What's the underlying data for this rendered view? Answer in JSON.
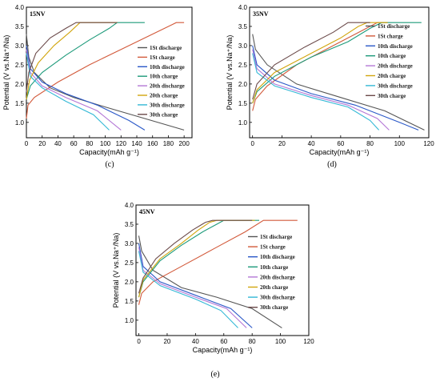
{
  "legend_labels": [
    "1St  discharge",
    "1St charge",
    "10th discharge",
    "10th charge",
    "20th  discharge",
    "20th charge",
    "30th  discharge",
    "30th charge"
  ],
  "colors": [
    "#555555",
    "#d2593a",
    "#2a58c8",
    "#1d9a7a",
    "#b477d6",
    "#d1a50d",
    "#33b8d6",
    "#6b4a4a"
  ],
  "chart_data": [
    {
      "type": "line",
      "panel": "15NV",
      "caption": "(c)",
      "xlabel": "Capacity(mAh g⁻¹)",
      "ylabel": "Potential (V vs.Na⁺/Na)",
      "xlim": [
        0,
        210
      ],
      "ylim": [
        0.6,
        4.0
      ],
      "xticks": [
        0,
        20,
        40,
        60,
        80,
        100,
        120,
        140,
        160,
        180,
        200
      ],
      "yticks": [
        1.0,
        1.5,
        2.0,
        2.5,
        3.0,
        3.5,
        4.0
      ],
      "series": [
        {
          "name": "1St  discharge",
          "x": [
            0,
            3,
            10,
            30,
            60,
            100,
            150,
            200
          ],
          "y": [
            3.3,
            2.7,
            2.3,
            1.9,
            1.65,
            1.4,
            1.1,
            0.8
          ]
        },
        {
          "name": "1St charge",
          "x": [
            0,
            2,
            10,
            40,
            80,
            120,
            160,
            185,
            190,
            200
          ],
          "y": [
            1.1,
            1.45,
            1.65,
            2.05,
            2.5,
            2.9,
            3.3,
            3.55,
            3.6,
            3.6
          ]
        },
        {
          "name": "10th discharge",
          "x": [
            0,
            5,
            20,
            50,
            90,
            130,
            150
          ],
          "y": [
            3.0,
            2.4,
            2.05,
            1.75,
            1.45,
            1.05,
            0.8
          ]
        },
        {
          "name": "10th charge",
          "x": [
            0,
            5,
            20,
            50,
            80,
            105,
            115,
            150
          ],
          "y": [
            1.6,
            1.95,
            2.3,
            2.75,
            3.15,
            3.45,
            3.6,
            3.6
          ]
        },
        {
          "name": "20th  discharge",
          "x": [
            0,
            5,
            20,
            50,
            90,
            120
          ],
          "y": [
            2.9,
            2.3,
            1.95,
            1.65,
            1.3,
            0.8
          ]
        },
        {
          "name": "20th charge",
          "x": [
            0,
            4,
            15,
            35,
            55,
            68,
            115
          ],
          "y": [
            1.6,
            2.1,
            2.55,
            3.0,
            3.35,
            3.6,
            3.6
          ]
        },
        {
          "name": "30th  discharge",
          "x": [
            0,
            5,
            20,
            50,
            85,
            105
          ],
          "y": [
            2.8,
            2.2,
            1.9,
            1.55,
            1.2,
            0.8
          ]
        },
        {
          "name": "30th charge",
          "x": [
            0,
            3,
            12,
            30,
            50,
            63,
            115
          ],
          "y": [
            1.8,
            2.3,
            2.8,
            3.2,
            3.45,
            3.6,
            3.6
          ]
        }
      ]
    },
    {
      "type": "line",
      "panel": "35NV",
      "caption": "(d)",
      "xlabel": "Capacity(mAh g⁻¹)",
      "ylabel": "Potential (V vs.Na⁺/Na)",
      "xlim": [
        -2,
        120
      ],
      "ylim": [
        0.6,
        4.0
      ],
      "xticks": [
        0,
        20,
        40,
        60,
        80,
        100,
        120
      ],
      "yticks": [
        1.0,
        1.5,
        2.0,
        2.5,
        3.0,
        3.5,
        4.0
      ],
      "series": [
        {
          "name": "1St  discharge",
          "x": [
            0,
            2,
            10,
            30,
            60,
            90,
            117
          ],
          "y": [
            3.3,
            2.9,
            2.5,
            2.0,
            1.65,
            1.3,
            0.8
          ]
        },
        {
          "name": "1St charge",
          "x": [
            0,
            2,
            10,
            30,
            55,
            75,
            85,
            92
          ],
          "y": [
            1.3,
            1.6,
            1.95,
            2.5,
            3.0,
            3.4,
            3.6,
            3.6
          ]
        },
        {
          "name": "10th discharge",
          "x": [
            0,
            3,
            15,
            40,
            70,
            100,
            113
          ],
          "y": [
            3.0,
            2.5,
            2.1,
            1.75,
            1.45,
            1.0,
            0.8
          ]
        },
        {
          "name": "10th charge",
          "x": [
            0,
            3,
            15,
            40,
            65,
            80,
            88,
            115
          ],
          "y": [
            1.5,
            1.8,
            2.2,
            2.7,
            3.1,
            3.45,
            3.6,
            3.6
          ]
        },
        {
          "name": "20th  discharge",
          "x": [
            0,
            3,
            15,
            40,
            65,
            85,
            93
          ],
          "y": [
            2.9,
            2.4,
            2.0,
            1.7,
            1.45,
            1.1,
            0.8
          ]
        },
        {
          "name": "20th charge",
          "x": [
            0,
            3,
            15,
            40,
            60,
            72,
            78,
            92
          ],
          "y": [
            1.5,
            1.85,
            2.3,
            2.8,
            3.2,
            3.5,
            3.6,
            3.6
          ]
        },
        {
          "name": "30th  discharge",
          "x": [
            0,
            3,
            15,
            40,
            65,
            80,
            86
          ],
          "y": [
            2.8,
            2.3,
            1.95,
            1.65,
            1.4,
            1.05,
            0.8
          ]
        },
        {
          "name": "30th charge",
          "x": [
            0,
            3,
            15,
            35,
            55,
            65,
            80
          ],
          "y": [
            1.6,
            2.0,
            2.5,
            2.95,
            3.35,
            3.6,
            3.6
          ]
        }
      ]
    },
    {
      "type": "line",
      "panel": "45NV",
      "caption": "(e)",
      "xlabel": "Capacity(mAh g⁻¹)",
      "ylabel": "Potential (V vs.Na⁺/Na)",
      "xlim": [
        -2,
        120
      ],
      "ylim": [
        0.6,
        4.0
      ],
      "xticks": [
        0,
        20,
        40,
        60,
        80,
        100,
        120
      ],
      "yticks": [
        1.0,
        1.5,
        2.0,
        2.5,
        3.0,
        3.5,
        4.0
      ],
      "series": [
        {
          "name": "1St  discharge",
          "x": [
            0,
            2,
            10,
            30,
            55,
            80,
            101
          ],
          "y": [
            3.2,
            2.8,
            2.3,
            1.85,
            1.6,
            1.3,
            0.8
          ]
        },
        {
          "name": "1St charge",
          "x": [
            0,
            2,
            10,
            30,
            55,
            75,
            88,
            112
          ],
          "y": [
            1.4,
            1.7,
            2.0,
            2.4,
            2.9,
            3.3,
            3.6,
            3.6
          ]
        },
        {
          "name": "10th discharge",
          "x": [
            0,
            3,
            15,
            40,
            65,
            80
          ],
          "y": [
            3.0,
            2.4,
            2.0,
            1.65,
            1.3,
            0.8
          ]
        },
        {
          "name": "10th charge",
          "x": [
            0,
            3,
            15,
            30,
            45,
            55,
            60,
            85
          ],
          "y": [
            1.6,
            2.0,
            2.55,
            2.95,
            3.3,
            3.5,
            3.6,
            3.6
          ]
        },
        {
          "name": "20th  discharge",
          "x": [
            0,
            3,
            15,
            40,
            62,
            76
          ],
          "y": [
            2.9,
            2.3,
            1.95,
            1.6,
            1.3,
            0.8
          ]
        },
        {
          "name": "20th charge",
          "x": [
            0,
            3,
            15,
            30,
            42,
            50,
            55,
            82
          ],
          "y": [
            1.6,
            2.05,
            2.6,
            3.0,
            3.35,
            3.55,
            3.6,
            3.6
          ]
        },
        {
          "name": "30th  discharge",
          "x": [
            0,
            3,
            15,
            40,
            58,
            70
          ],
          "y": [
            2.8,
            2.25,
            1.9,
            1.55,
            1.25,
            0.8
          ]
        },
        {
          "name": "30th charge",
          "x": [
            0,
            3,
            12,
            25,
            38,
            47,
            52,
            80
          ],
          "y": [
            1.7,
            2.1,
            2.6,
            3.0,
            3.35,
            3.55,
            3.6,
            3.6
          ]
        }
      ]
    }
  ]
}
